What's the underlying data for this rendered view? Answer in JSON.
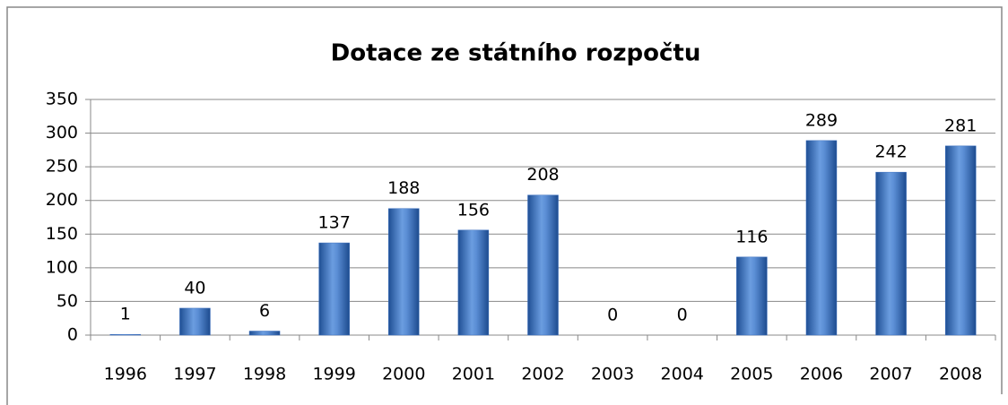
{
  "chart_data": {
    "type": "bar",
    "title": "Dotace ze státního rozpočtu",
    "categories": [
      "1996",
      "1997",
      "1998",
      "1999",
      "2000",
      "2001",
      "2002",
      "2003",
      "2004",
      "2005",
      "2006",
      "2007",
      "2008"
    ],
    "values": [
      1,
      40,
      6,
      137,
      188,
      156,
      208,
      0,
      0,
      116,
      289,
      242,
      281
    ],
    "color": "#3a6fbf",
    "ylim": [
      0,
      350
    ],
    "yticks": [
      0,
      50,
      100,
      150,
      200,
      250,
      300,
      350
    ],
    "grid": true
  }
}
